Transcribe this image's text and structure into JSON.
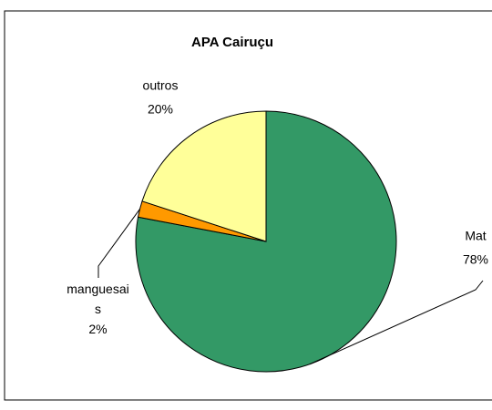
{
  "chart_data": {
    "type": "pie",
    "title": "APA Cairuçu",
    "categories": [
      "Mat",
      "manguesais",
      "outros"
    ],
    "values": [
      78,
      2,
      20
    ],
    "value_labels": [
      "78%",
      "2%",
      "20%"
    ],
    "colors": [
      "#339966",
      "#ff9900",
      "#ffff99"
    ]
  }
}
